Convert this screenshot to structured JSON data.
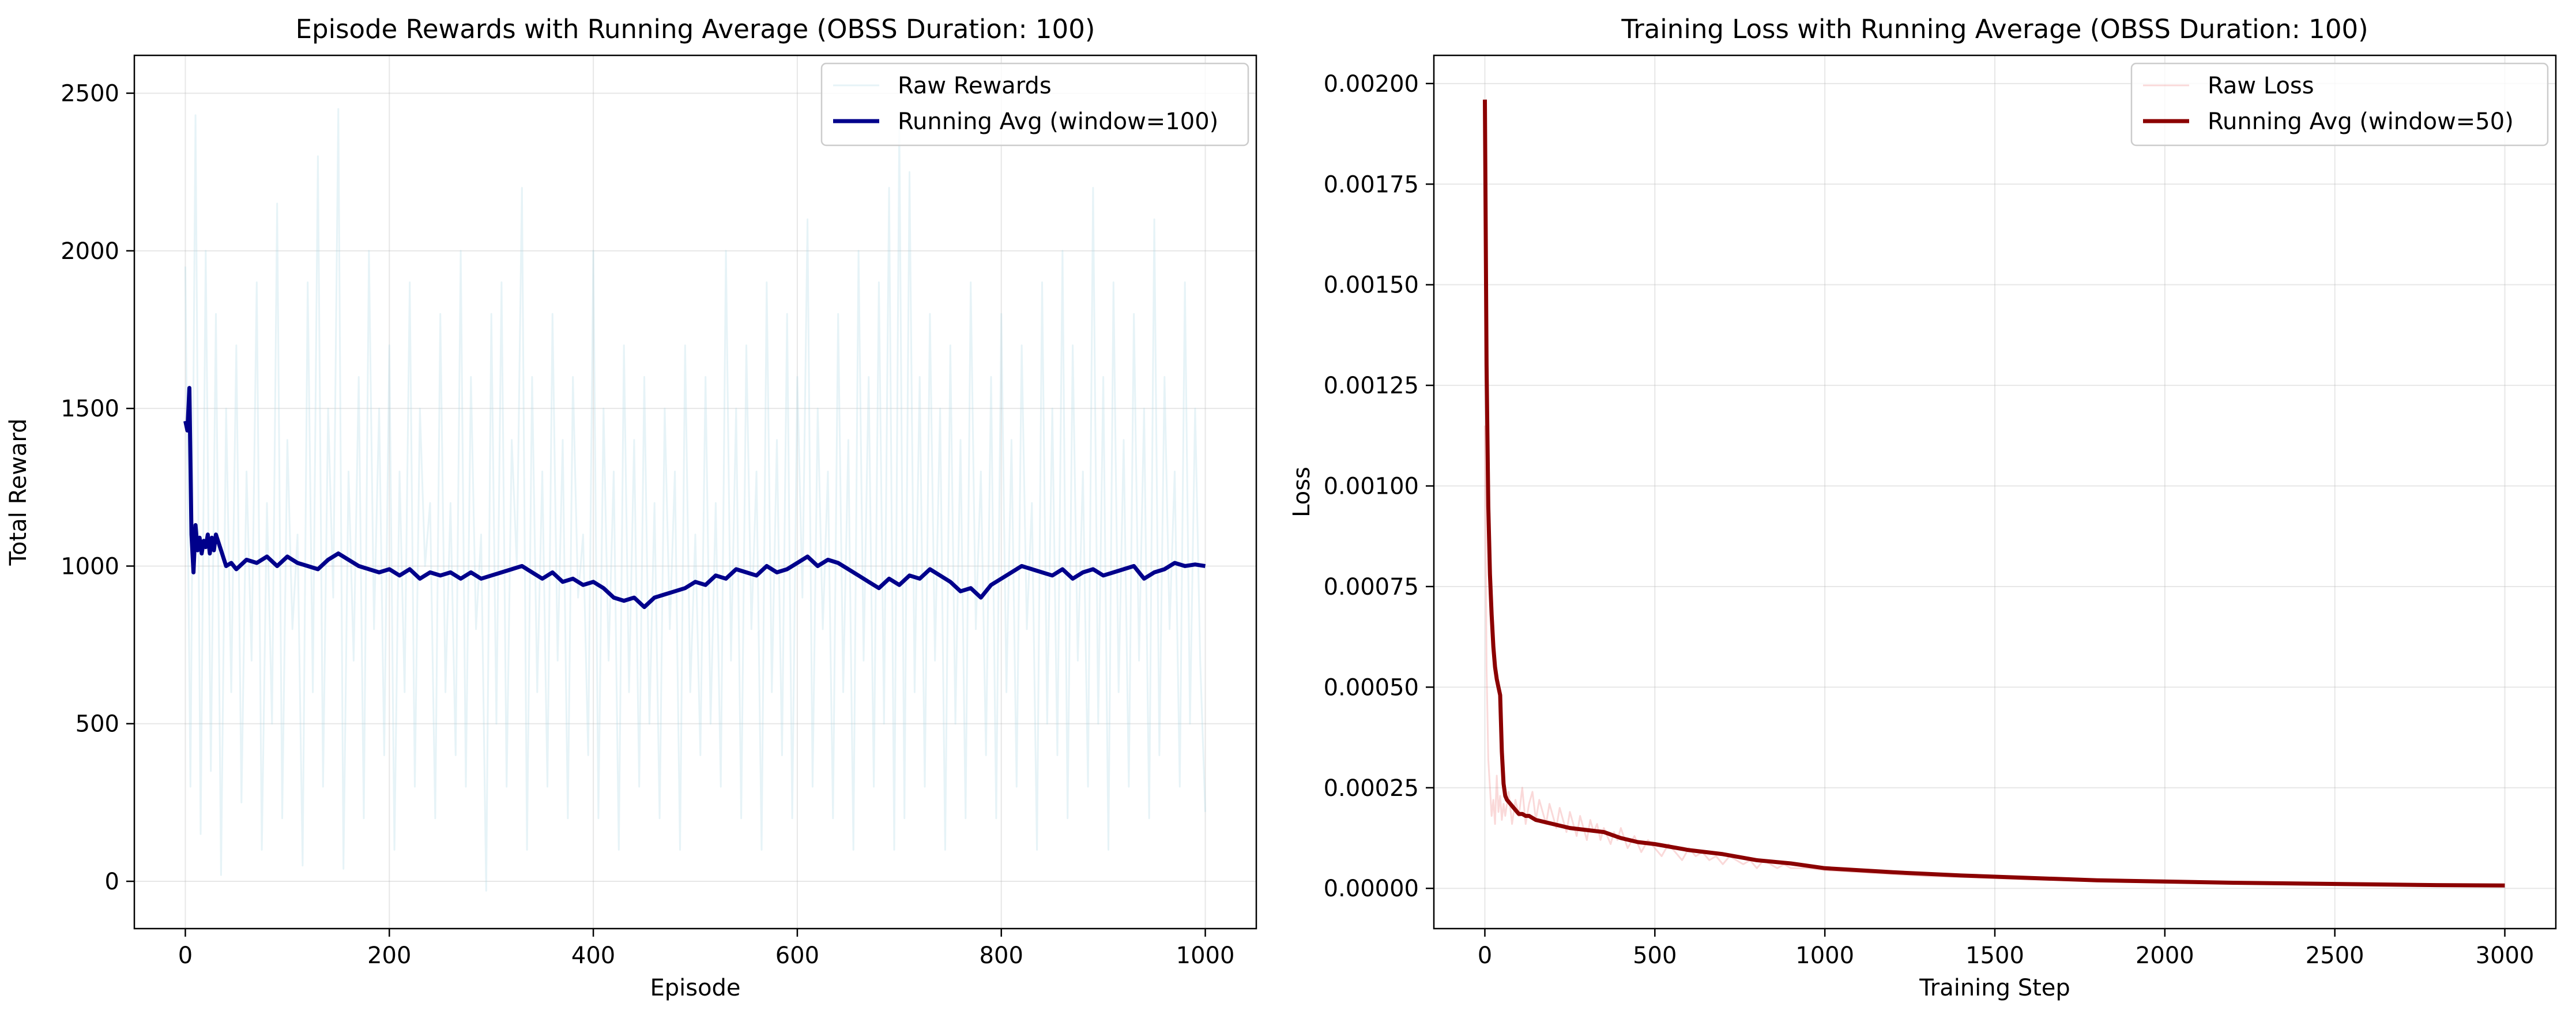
{
  "chart_data": [
    {
      "type": "line",
      "title": "Episode Rewards with Running Average (OBSS Duration: 100)",
      "xlabel": "Episode",
      "ylabel": "Total Reward",
      "xlim": [
        -50,
        1050
      ],
      "ylim": [
        -150,
        2620
      ],
      "xticks": [
        0,
        200,
        400,
        600,
        800,
        1000
      ],
      "xtick_labels": [
        "0",
        "200",
        "400",
        "600",
        "800",
        "1000"
      ],
      "yticks": [
        0,
        500,
        1000,
        1500,
        2000,
        2500
      ],
      "ytick_labels": [
        "0",
        "500",
        "1000",
        "1500",
        "2000",
        "2500"
      ],
      "grid": true,
      "legend_position": "top-right",
      "series": [
        {
          "name": "Raw Rewards",
          "color": "#add8e6",
          "opacity": 0.3,
          "x": [
            0,
            5,
            10,
            15,
            20,
            25,
            30,
            35,
            40,
            45,
            50,
            55,
            60,
            65,
            70,
            75,
            80,
            85,
            90,
            95,
            100,
            105,
            110,
            115,
            120,
            125,
            130,
            135,
            140,
            145,
            150,
            155,
            160,
            165,
            170,
            175,
            180,
            185,
            190,
            195,
            200,
            205,
            210,
            215,
            220,
            225,
            230,
            235,
            240,
            245,
            250,
            255,
            260,
            265,
            270,
            275,
            280,
            285,
            290,
            295,
            300,
            305,
            310,
            315,
            320,
            325,
            330,
            335,
            340,
            345,
            350,
            355,
            360,
            365,
            370,
            375,
            380,
            385,
            390,
            395,
            400,
            405,
            410,
            415,
            420,
            425,
            430,
            435,
            440,
            445,
            450,
            455,
            460,
            465,
            470,
            475,
            480,
            485,
            490,
            495,
            500,
            505,
            510,
            515,
            520,
            525,
            530,
            535,
            540,
            545,
            550,
            555,
            560,
            565,
            570,
            575,
            580,
            585,
            590,
            595,
            600,
            605,
            610,
            615,
            620,
            625,
            630,
            635,
            640,
            645,
            650,
            655,
            660,
            665,
            670,
            675,
            680,
            685,
            690,
            695,
            700,
            705,
            710,
            715,
            720,
            725,
            730,
            735,
            740,
            745,
            750,
            755,
            760,
            765,
            770,
            775,
            780,
            785,
            790,
            795,
            800,
            805,
            810,
            815,
            820,
            825,
            830,
            835,
            840,
            845,
            850,
            855,
            860,
            865,
            870,
            875,
            880,
            885,
            890,
            895,
            900,
            905,
            910,
            915,
            920,
            925,
            930,
            935,
            940,
            945,
            950,
            955,
            960,
            965,
            970,
            975,
            980,
            985,
            990,
            995,
            1000
          ],
          "values": [
            1950,
            300,
            2430,
            150,
            2000,
            350,
            1800,
            20,
            1500,
            600,
            1700,
            250,
            1300,
            700,
            1900,
            100,
            1200,
            500,
            2150,
            200,
            1400,
            800,
            1100,
            50,
            1900,
            600,
            2300,
            300,
            1500,
            900,
            2450,
            40,
            1300,
            700,
            1600,
            200,
            2000,
            800,
            1500,
            400,
            1700,
            100,
            1300,
            600,
            1900,
            300,
            1500,
            1000,
            1200,
            200,
            1800,
            600,
            1200,
            400,
            2000,
            300,
            1600,
            800,
            1100,
            -30,
            1800,
            500,
            1900,
            300,
            1400,
            1000,
            2200,
            100,
            1600,
            600,
            1300,
            300,
            1800,
            700,
            1400,
            200,
            1600,
            900,
            1100,
            400,
            2000,
            200,
            1500,
            700,
            1300,
            100,
            1700,
            600,
            1400,
            300,
            1600,
            500,
            1200,
            200,
            1500,
            800,
            1300,
            100,
            1700,
            600,
            1100,
            400,
            1600,
            500,
            1200,
            300,
            2000,
            700,
            1500,
            200,
            1700,
            800,
            1300,
            100,
            1900,
            600,
            1400,
            400,
            1800,
            200,
            1600,
            900,
            2100,
            300,
            1500,
            800,
            1300,
            200,
            1800,
            600,
            1400,
            100,
            2000,
            700,
            1600,
            300,
            1900,
            500,
            2200,
            100,
            2400,
            200,
            2250,
            600,
            1600,
            300,
            1800,
            700,
            1500,
            100,
            1700,
            500,
            1400,
            200,
            1900,
            800,
            1300,
            400,
            1600,
            200,
            1800,
            600,
            1400,
            300,
            1700,
            800,
            1200,
            100,
            1900,
            500,
            1500,
            400,
            2000,
            200,
            1700,
            700,
            1300,
            300,
            2200,
            500,
            1600,
            100,
            1900,
            600,
            1400,
            300,
            1800,
            700,
            1500,
            200,
            2100,
            400,
            1600,
            800,
            1300,
            300,
            1900,
            500,
            1500,
            700,
            220
          ]
        },
        {
          "name": "Running Avg (window=100)",
          "color": "#00008b",
          "x": [
            0,
            2,
            4,
            6,
            8,
            10,
            12,
            14,
            16,
            18,
            20,
            22,
            24,
            26,
            28,
            30,
            35,
            40,
            45,
            50,
            60,
            70,
            80,
            90,
            100,
            110,
            120,
            130,
            140,
            150,
            160,
            170,
            180,
            190,
            200,
            210,
            220,
            230,
            240,
            250,
            260,
            270,
            280,
            290,
            300,
            310,
            320,
            330,
            340,
            350,
            360,
            370,
            380,
            390,
            400,
            410,
            420,
            430,
            440,
            450,
            460,
            470,
            480,
            490,
            500,
            510,
            520,
            530,
            540,
            550,
            560,
            570,
            580,
            590,
            600,
            610,
            620,
            630,
            640,
            650,
            660,
            670,
            680,
            690,
            700,
            710,
            720,
            730,
            740,
            750,
            760,
            770,
            780,
            790,
            800,
            810,
            820,
            830,
            840,
            850,
            860,
            870,
            880,
            890,
            900,
            910,
            920,
            930,
            940,
            950,
            960,
            970,
            980,
            990,
            1000
          ],
          "values": [
            1460,
            1430,
            1565,
            1100,
            980,
            1130,
            1050,
            1090,
            1040,
            1080,
            1060,
            1100,
            1040,
            1090,
            1050,
            1100,
            1050,
            1000,
            1010,
            990,
            1020,
            1010,
            1030,
            1000,
            1030,
            1010,
            1000,
            990,
            1020,
            1040,
            1020,
            1000,
            990,
            980,
            990,
            970,
            990,
            960,
            980,
            970,
            980,
            960,
            980,
            960,
            970,
            980,
            990,
            1000,
            980,
            960,
            980,
            950,
            960,
            940,
            950,
            930,
            900,
            890,
            900,
            870,
            900,
            910,
            920,
            930,
            950,
            940,
            970,
            960,
            990,
            980,
            970,
            1000,
            980,
            990,
            1010,
            1030,
            1000,
            1020,
            1010,
            990,
            970,
            950,
            930,
            960,
            940,
            970,
            960,
            990,
            970,
            950,
            920,
            930,
            900,
            940,
            960,
            980,
            1000,
            990,
            980,
            970,
            990,
            960,
            980,
            990,
            970,
            980,
            990,
            1000,
            960,
            980,
            990,
            1010,
            1000,
            1005,
            1000
          ]
        }
      ]
    },
    {
      "type": "line",
      "title": "Training Loss with Running Average (OBSS Duration: 100)",
      "xlabel": "Training Step",
      "ylabel": "Loss",
      "xlim": [
        -150,
        3150
      ],
      "ylim": [
        -0.0001,
        0.00207
      ],
      "xticks": [
        0,
        500,
        1000,
        1500,
        2000,
        2500,
        3000
      ],
      "xtick_labels": [
        "0",
        "500",
        "1000",
        "1500",
        "2000",
        "2500",
        "3000"
      ],
      "yticks": [
        0,
        0.00025,
        0.0005,
        0.00075,
        0.001,
        0.00125,
        0.0015,
        0.00175,
        0.002
      ],
      "ytick_labels": [
        "0.00000",
        "0.00025",
        "0.00050",
        "0.00075",
        "0.00100",
        "0.00125",
        "0.00150",
        "0.00175",
        "0.00200"
      ],
      "grid": true,
      "legend_position": "top-right",
      "series": [
        {
          "name": "Raw Loss",
          "color": "#f08080",
          "opacity": 0.3,
          "x": [
            0,
            5,
            10,
            15,
            20,
            25,
            30,
            35,
            40,
            45,
            50,
            55,
            60,
            70,
            80,
            90,
            100,
            110,
            120,
            130,
            140,
            150,
            160,
            170,
            180,
            190,
            200,
            210,
            220,
            230,
            240,
            250,
            260,
            270,
            280,
            290,
            300,
            310,
            320,
            330,
            340,
            350,
            360,
            370,
            380,
            390,
            400,
            420,
            440,
            460,
            480,
            500,
            520,
            540,
            560,
            580,
            600,
            620,
            640,
            660,
            680,
            700,
            720,
            740,
            760,
            780,
            800,
            820,
            840,
            860,
            880,
            900,
            950,
            1000,
            1100,
            1200,
            1300,
            1400,
            1500,
            1600,
            1800,
            2000,
            2200,
            2400,
            2600,
            2800,
            3000
          ],
          "values": [
            0.00115,
            0.00055,
            0.00032,
            0.00025,
            0.00018,
            0.00022,
            0.00016,
            0.00028,
            0.00019,
            0.00023,
            0.00017,
            0.00021,
            0.00018,
            0.00024,
            0.00016,
            0.00022,
            0.00018,
            0.00025,
            0.00016,
            0.00021,
            0.00024,
            0.00017,
            0.00022,
            0.00019,
            0.00016,
            0.00021,
            0.00018,
            0.00015,
            0.0002,
            0.00017,
            0.00014,
            0.00019,
            0.00016,
            0.00013,
            0.00018,
            0.00015,
            0.00012,
            0.00017,
            0.00014,
            0.00016,
            0.00012,
            0.00015,
            0.00013,
            0.00011,
            0.00014,
            0.00012,
            0.00015,
            0.0001,
            0.00013,
            9e-05,
            0.00012,
            0.0001,
            8e-05,
            0.00011,
            9e-05,
            7e-05,
            0.0001,
            8e-05,
            9e-05,
            7e-05,
            8e-05,
            6e-05,
            8e-05,
            7e-05,
            6e-05,
            7e-05,
            5e-05,
            7e-05,
            6e-05,
            5e-05,
            6e-05,
            5e-05,
            5e-05,
            4.5e-05,
            4e-05,
            3.5e-05,
            3e-05,
            2.8e-05,
            2.5e-05,
            2.2e-05,
            1.8e-05,
            1.5e-05,
            1.3e-05,
            1.1e-05,
            1e-05,
            8e-06,
            7e-06
          ]
        },
        {
          "name": "Running Avg (window=50)",
          "color": "#8b0000",
          "x": [
            0,
            5,
            10,
            15,
            20,
            25,
            30,
            35,
            40,
            45,
            50,
            55,
            60,
            65,
            70,
            80,
            90,
            100,
            110,
            120,
            130,
            140,
            150,
            175,
            200,
            250,
            300,
            350,
            400,
            450,
            500,
            600,
            700,
            800,
            900,
            1000,
            1200,
            1400,
            1600,
            1800,
            2000,
            2200,
            2400,
            2600,
            2800,
            3000
          ],
          "values": [
            0.00196,
            0.0013,
            0.00095,
            0.00078,
            0.00068,
            0.0006,
            0.00055,
            0.00052,
            0.0005,
            0.00048,
            0.00034,
            0.00026,
            0.00023,
            0.00022,
            0.000215,
            0.000205,
            0.000195,
            0.000185,
            0.000185,
            0.00018,
            0.00018,
            0.000175,
            0.00017,
            0.000165,
            0.00016,
            0.00015,
            0.000145,
            0.00014,
            0.000125,
            0.000115,
            0.00011,
            9.5e-05,
            8.5e-05,
            7e-05,
            6.2e-05,
            5e-05,
            4e-05,
            3.2e-05,
            2.6e-05,
            2e-05,
            1.7e-05,
            1.4e-05,
            1.2e-05,
            1e-05,
            8e-06,
            7e-06
          ]
        }
      ]
    }
  ]
}
